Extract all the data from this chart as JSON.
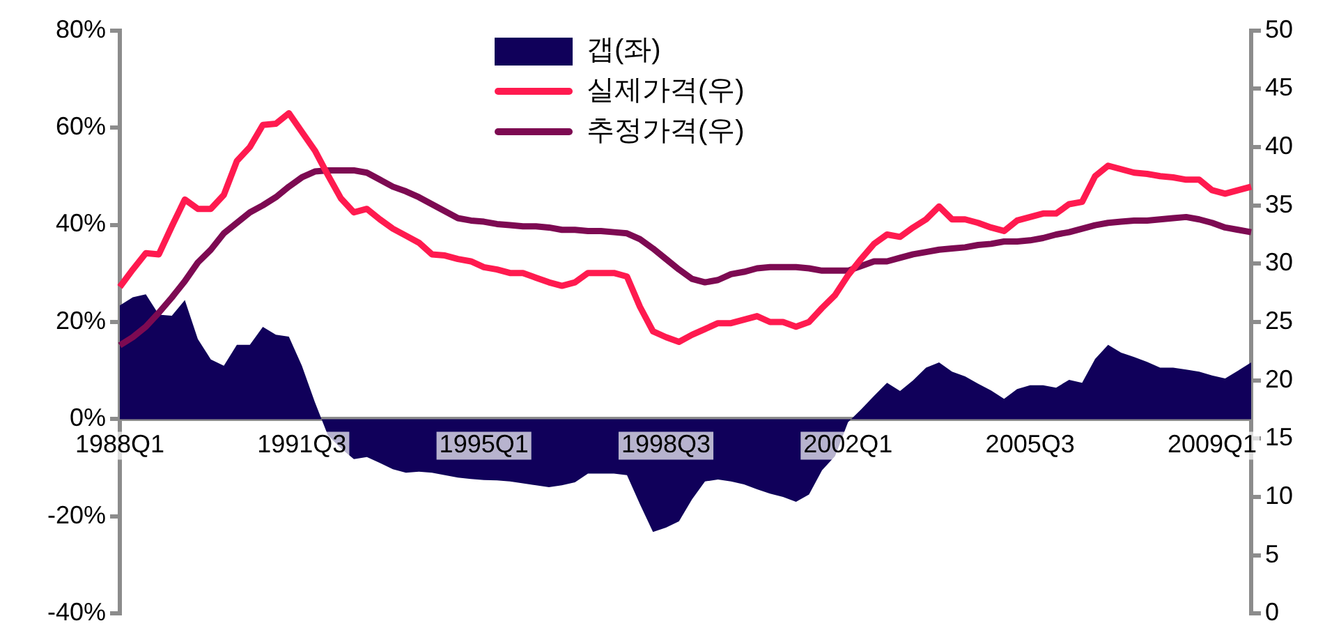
{
  "chart_data": {
    "type": "area",
    "categories": [
      "1988Q1",
      null,
      null,
      null,
      null,
      null,
      null,
      null,
      null,
      null,
      null,
      null,
      null,
      null,
      "1991Q3",
      null,
      null,
      null,
      null,
      null,
      null,
      null,
      null,
      null,
      null,
      null,
      null,
      null,
      "1995Q1",
      null,
      null,
      null,
      null,
      null,
      null,
      null,
      null,
      null,
      null,
      null,
      null,
      null,
      "1998Q3",
      null,
      null,
      null,
      null,
      null,
      null,
      null,
      null,
      null,
      null,
      null,
      null,
      null,
      "2002Q1",
      null,
      null,
      null,
      null,
      null,
      null,
      null,
      null,
      null,
      null,
      null,
      null,
      null,
      "2005Q3",
      null,
      null,
      null,
      null,
      null,
      null,
      null,
      null,
      null,
      null,
      null,
      null,
      null,
      "2009Q1",
      null,
      null,
      null
    ],
    "series": [
      {
        "name": "갭(좌)",
        "color": "#10005a",
        "values": [
          23.4,
          25.1,
          25.7,
          21.5,
          21.3,
          24.5,
          16.5,
          12.3,
          11.0,
          15.3,
          15.3,
          19.0,
          17.4,
          17.0,
          11.0,
          3.5,
          -3.3,
          -6.0,
          -8.2,
          -7.8,
          -9.0,
          -10.3,
          -11.0,
          -10.8,
          -11.0,
          -11.5,
          -12.0,
          -12.3,
          -12.5,
          -12.6,
          -12.8,
          -13.2,
          -13.6,
          -14.0,
          -13.6,
          -13.0,
          -11.2,
          -11.2,
          -11.2,
          -11.5,
          -17.5,
          -23.2,
          -22.3,
          -21.0,
          -16.5,
          -12.8,
          -12.4,
          -12.8,
          -13.4,
          -14.4,
          -15.3,
          -16.0,
          -17.0,
          -15.5,
          -10.5,
          -7.6,
          -0.6,
          2.0,
          4.8,
          7.5,
          5.8,
          8.0,
          10.6,
          11.7,
          9.8,
          8.8,
          7.3,
          5.9,
          4.2,
          6.2,
          7.0,
          7.0,
          6.5,
          8.1,
          7.5,
          12.4,
          15.3,
          13.7,
          12.8,
          11.8,
          10.6,
          10.6,
          10.2,
          9.8,
          9.0,
          8.4,
          10.0,
          11.7
        ]
      },
      {
        "name": "실제가격(우)",
        "type": "line",
        "axis": "y2",
        "color": "#ff1a4f",
        "values": [
          28.0,
          29.5,
          30.9,
          30.8,
          33.2,
          35.5,
          34.7,
          34.7,
          35.9,
          38.8,
          40.0,
          41.9,
          42.0,
          42.9,
          41.3,
          39.7,
          37.6,
          35.6,
          34.4,
          34.7,
          33.8,
          33.0,
          32.4,
          31.8,
          30.8,
          30.7,
          30.4,
          30.2,
          29.7,
          29.5,
          29.2,
          29.2,
          28.8,
          28.4,
          28.1,
          28.4,
          29.2,
          29.2,
          29.2,
          28.9,
          26.3,
          24.2,
          23.7,
          23.3,
          23.9,
          24.4,
          24.9,
          24.9,
          25.2,
          25.5,
          25.0,
          25.0,
          24.6,
          25.0,
          26.2,
          27.3,
          29.0,
          30.4,
          31.7,
          32.5,
          32.3,
          33.1,
          33.8,
          34.9,
          33.8,
          33.8,
          33.5,
          33.1,
          32.8,
          33.7,
          34.0,
          34.3,
          34.3,
          35.1,
          35.3,
          37.5,
          38.4,
          38.1,
          37.8,
          37.7,
          37.5,
          37.4,
          37.2,
          37.2,
          36.3,
          36.0,
          36.3,
          36.6
        ]
      },
      {
        "name": "추정가격(우)",
        "type": "line",
        "axis": "y2",
        "color": "#7d0a52",
        "values": [
          23.0,
          23.7,
          24.6,
          25.8,
          27.1,
          28.5,
          30.1,
          31.2,
          32.6,
          33.5,
          34.4,
          35.0,
          35.7,
          36.6,
          37.4,
          37.9,
          38.0,
          38.0,
          38.0,
          37.8,
          37.2,
          36.6,
          36.2,
          35.7,
          35.1,
          34.5,
          33.9,
          33.7,
          33.6,
          33.4,
          33.3,
          33.2,
          33.2,
          33.1,
          32.9,
          32.9,
          32.8,
          32.8,
          32.7,
          32.6,
          32.1,
          31.3,
          30.4,
          29.5,
          28.7,
          28.4,
          28.6,
          29.1,
          29.3,
          29.6,
          29.7,
          29.7,
          29.7,
          29.6,
          29.4,
          29.4,
          29.4,
          29.8,
          30.2,
          30.2,
          30.5,
          30.8,
          31.0,
          31.2,
          31.3,
          31.4,
          31.6,
          31.7,
          31.9,
          31.9,
          32.0,
          32.2,
          32.5,
          32.7,
          33.0,
          33.3,
          33.5,
          33.6,
          33.7,
          33.7,
          33.8,
          33.9,
          34.0,
          33.8,
          33.5,
          33.1,
          32.9,
          32.7
        ]
      }
    ],
    "ylim": [
      -40,
      80
    ],
    "yticks": [
      {
        "value": -40,
        "label": "-40%"
      },
      {
        "value": -20,
        "label": "-20%"
      },
      {
        "value": 0,
        "label": "0%"
      },
      {
        "value": 20,
        "label": "20%"
      },
      {
        "value": 40,
        "label": "40%"
      },
      {
        "value": 60,
        "label": "60%"
      },
      {
        "value": 80,
        "label": "80%"
      }
    ],
    "y2lim": [
      0,
      50
    ],
    "y2ticks": [
      0,
      5,
      10,
      15,
      20,
      25,
      30,
      35,
      40,
      45,
      50
    ],
    "legend": "top"
  }
}
